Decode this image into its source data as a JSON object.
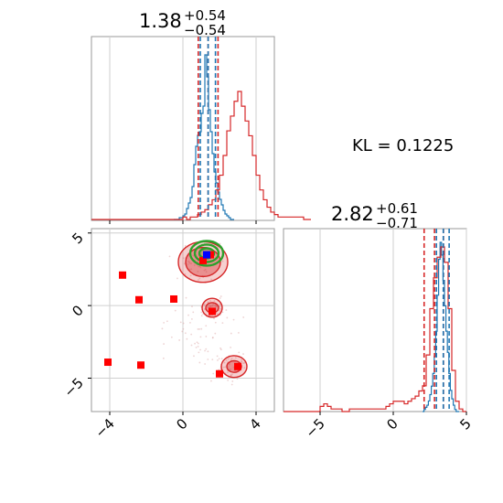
{
  "chart_data": [
    {
      "type": "histogram",
      "panel": "top-left",
      "title": {
        "value": "1.38",
        "plus": "+0.54",
        "minus": "−0.54"
      },
      "xlim": [
        -5,
        5
      ],
      "grid": true,
      "quantile_lines": {
        "red": [
          0.84,
          1.38,
          1.92
        ],
        "blue": [
          0.95,
          1.38,
          1.78
        ]
      },
      "series": [
        {
          "color": "#1f77b4",
          "bins_x0": -0.5,
          "bin_width": 0.1,
          "values": [
            0,
            0,
            0,
            1,
            1,
            2,
            3,
            6,
            9,
            12,
            18,
            30,
            40,
            46,
            48,
            58,
            62,
            90,
            78,
            60,
            48,
            36,
            26,
            20,
            15,
            11,
            8,
            5,
            3,
            2,
            1,
            0,
            0
          ]
        },
        {
          "color": "#d62728",
          "bins_x0": -5,
          "bin_width": 0.2,
          "values": [
            0,
            0,
            0,
            0,
            0,
            0,
            0,
            0,
            0,
            0,
            0,
            0,
            0,
            0,
            0,
            0,
            0,
            0,
            0,
            0,
            0,
            0,
            0,
            0,
            0,
            1,
            0,
            1,
            1,
            2,
            3,
            4,
            6,
            8,
            12,
            18,
            26,
            36,
            42,
            48,
            52,
            46,
            40,
            34,
            26,
            18,
            12,
            8,
            5,
            3,
            2,
            1,
            1,
            1,
            1,
            1,
            1,
            1,
            0,
            0
          ]
        }
      ]
    },
    {
      "type": "scatter",
      "panel": "bottom-left",
      "xlim": [
        -5,
        5
      ],
      "ylim": [
        -7.3,
        5.3
      ],
      "xticks": [
        "−4",
        "0",
        "4"
      ],
      "yticks": [
        "5",
        "0",
        "−5"
      ],
      "xtick_values": [
        -4,
        0,
        4
      ],
      "ytick_values": [
        5,
        0,
        -5
      ],
      "grid": true,
      "red_squares": [
        [
          -3.3,
          2.1
        ],
        [
          -2.4,
          0.4
        ],
        [
          -0.5,
          0.45
        ],
        [
          -4.1,
          -3.9
        ],
        [
          -2.3,
          -4.1
        ],
        [
          2.0,
          -4.7
        ],
        [
          3.0,
          -4.2
        ],
        [
          1.6,
          -0.4
        ],
        [
          1.1,
          3.1
        ],
        [
          1.5,
          3.5
        ]
      ],
      "blue_squares": [
        [
          1.3,
          3.5
        ]
      ],
      "green_circles": {
        "center": [
          1.3,
          3.6
        ],
        "rx": [
          0.9,
          0.65,
          0.4
        ],
        "ry": [
          0.85,
          0.6,
          0.35
        ]
      },
      "red_contours": [
        {
          "center": [
            1.1,
            3.0
          ],
          "rx": [
            1.35,
            0.95
          ],
          "ry": [
            1.4,
            1.0
          ]
        },
        {
          "center": [
            1.6,
            -0.15
          ],
          "rx": [
            0.55,
            0.35
          ],
          "ry": [
            0.65,
            0.35
          ]
        },
        {
          "center": [
            2.8,
            -4.2
          ],
          "rx": [
            0.7,
            0.4
          ],
          "ry": [
            0.75,
            0.4
          ]
        }
      ]
    },
    {
      "type": "histogram",
      "panel": "bottom-right",
      "title": {
        "value": "2.82",
        "plus": "+0.61",
        "minus": "−0.71"
      },
      "xlim": [
        -7.5,
        5
      ],
      "xticks": [
        "−5",
        "0",
        "5"
      ],
      "xtick_values": [
        -5,
        0,
        5
      ],
      "grid": true,
      "quantile_lines": {
        "red": [
          2.11,
          2.82,
          3.43
        ],
        "blue": [
          2.95,
          3.42,
          3.82
        ]
      },
      "series": [
        {
          "color": "#1f77b4",
          "bins_x0": 2.0,
          "bin_width": 0.1,
          "values": [
            0,
            1,
            2,
            3,
            5,
            8,
            12,
            18,
            26,
            38,
            55,
            72,
            80,
            74,
            62,
            50,
            38,
            28,
            18,
            10,
            6,
            3,
            1,
            0,
            0
          ]
        },
        {
          "color": "#d62728",
          "bins_x0": -7.5,
          "bin_width": 0.25,
          "values": [
            0,
            0,
            0,
            0,
            0,
            0,
            0,
            0,
            0,
            0,
            2,
            3,
            2,
            1,
            1,
            1,
            0,
            0,
            1,
            1,
            1,
            1,
            1,
            1,
            1,
            1,
            1,
            1,
            2,
            3,
            4,
            4,
            4,
            3,
            4,
            5,
            6,
            8,
            10,
            22,
            40,
            52,
            60,
            64,
            58,
            40,
            16,
            4,
            1,
            0
          ]
        }
      ]
    },
    {
      "type": "annotation",
      "text": "KL = 0.1225"
    }
  ]
}
